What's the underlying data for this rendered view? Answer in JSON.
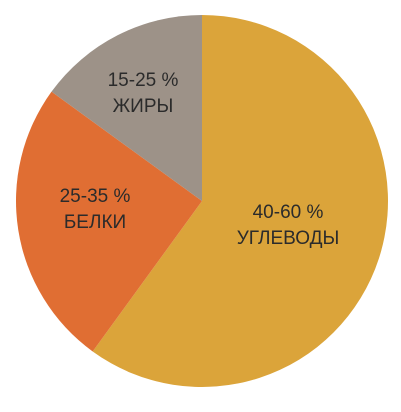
{
  "chart_data": {
    "type": "pie",
    "slices": [
      {
        "range": "40-60 %",
        "label": "УГЛЕВОДЫ",
        "value": 60,
        "color": "#dba43a"
      },
      {
        "range": "25-35 %",
        "label": "БЕЛКИ",
        "value": 25,
        "color": "#e06e33"
      },
      {
        "range": "15-25 %",
        "label": "ЖИРЫ",
        "value": 15,
        "color": "#9d9288"
      }
    ]
  }
}
